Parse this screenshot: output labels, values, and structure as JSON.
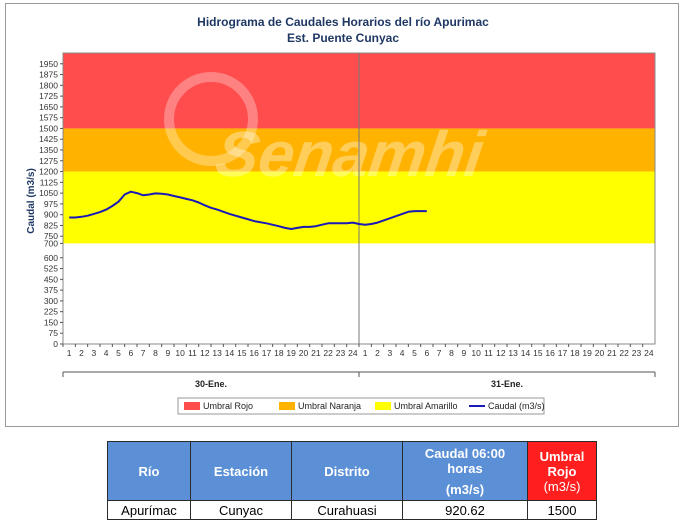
{
  "chart_data": {
    "type": "line",
    "title": "Hidrograma de Caudales Horarios del río Apurimac",
    "subtitle": "Est. Puente Cunyac",
    "ylabel": "Caudal   (m3/s)",
    "xlabel": "",
    "ylim": [
      0,
      2025
    ],
    "yticks": [
      0,
      75,
      150,
      225,
      300,
      375,
      450,
      525,
      600,
      700,
      750,
      825,
      900,
      975,
      1050,
      1125,
      1200,
      1275,
      1350,
      1425,
      1500,
      1575,
      1650,
      1725,
      1800,
      1875,
      1950
    ],
    "ytick_labels": [
      "0",
      "75",
      "150",
      "225",
      "300",
      "375",
      "450",
      "525",
      "600",
      "700",
      "750",
      "825",
      "900",
      "975",
      "1050",
      "1125",
      "1200",
      "1275",
      "1350",
      "1425",
      "1500",
      "1575",
      "1650",
      "1725",
      "1800",
      "1875",
      "1950"
    ],
    "x_tick_labels": [
      "1",
      "2",
      "3",
      "4",
      "5",
      "6",
      "7",
      "8",
      "9",
      "10",
      "11",
      "12",
      "13",
      "14",
      "15",
      "16",
      "17",
      "18",
      "19",
      "20",
      "21",
      "22",
      "23",
      "24",
      "1",
      "2",
      "3",
      "4",
      "5",
      "6",
      "7",
      "8",
      "9",
      "10",
      "11",
      "12",
      "13",
      "14",
      "15",
      "16",
      "17",
      "18",
      "19",
      "20",
      "21",
      "22",
      "23",
      "24"
    ],
    "days": [
      "30-Ene.",
      "31-Ene."
    ],
    "bands": [
      {
        "name": "Umbral Rojo",
        "from": 1500,
        "to": 2025,
        "color": "#ff4d4d"
      },
      {
        "name": "Umbral Naranja",
        "from": 1200,
        "to": 1500,
        "color": "#ffb300"
      },
      {
        "name": "Umbral Amarillo",
        "from": 700,
        "to": 1200,
        "color": "#ffff00"
      }
    ],
    "series": [
      {
        "name": "Caudal (m3/s)",
        "color": "#1a1ab8",
        "x": [
          1,
          1.5,
          2,
          2.5,
          3,
          3.5,
          4,
          4.5,
          5,
          5.5,
          6,
          6.5,
          7,
          7.5,
          8,
          8.5,
          9,
          9.5,
          10,
          10.5,
          11,
          11.5,
          12,
          12.5,
          13,
          14,
          15,
          16,
          17,
          18,
          18.5,
          19,
          19.5,
          20,
          20.5,
          21,
          21.5,
          22,
          22.5,
          23,
          23.5,
          24,
          24.5,
          25,
          25.5,
          26,
          26.5,
          27,
          28,
          28.5,
          29,
          29.5,
          30
        ],
        "values": [
          880,
          880,
          885,
          893,
          905,
          918,
          935,
          960,
          990,
          1040,
          1060,
          1050,
          1035,
          1040,
          1048,
          1045,
          1040,
          1030,
          1020,
          1010,
          1000,
          985,
          965,
          948,
          935,
          905,
          880,
          855,
          840,
          820,
          808,
          800,
          808,
          815,
          815,
          820,
          830,
          840,
          840,
          840,
          840,
          845,
          835,
          830,
          835,
          845,
          860,
          875,
          905,
          920,
          925,
          925,
          925
        ]
      }
    ],
    "grid": false,
    "legend_position": "bottom"
  },
  "legend": [
    {
      "label": "Umbral Rojo",
      "kind": "band",
      "color": "#ff4d4d"
    },
    {
      "label": "Umbral Naranja",
      "kind": "band",
      "color": "#ffb300"
    },
    {
      "label": "Umbral Amarillo",
      "kind": "band",
      "color": "#ffff00"
    },
    {
      "label": "Caudal (m3/s)",
      "kind": "line",
      "color": "#1a1ab8"
    }
  ],
  "watermark": "Senamhi",
  "table": {
    "headers": {
      "rio": "Río",
      "estacion": "Estación",
      "distrito": "Distrito",
      "caudal_1": "Caudal 06:00 horas",
      "caudal_2": "(m3/s)",
      "umbral_1": "Umbral",
      "umbral_2": "Rojo",
      "umbral_3": "(m3/s)"
    },
    "row": {
      "rio": "Apurímac",
      "estacion": "Cunyac",
      "distrito": "Curahuasi",
      "caudal": "920.62",
      "umbral": "1500"
    }
  }
}
